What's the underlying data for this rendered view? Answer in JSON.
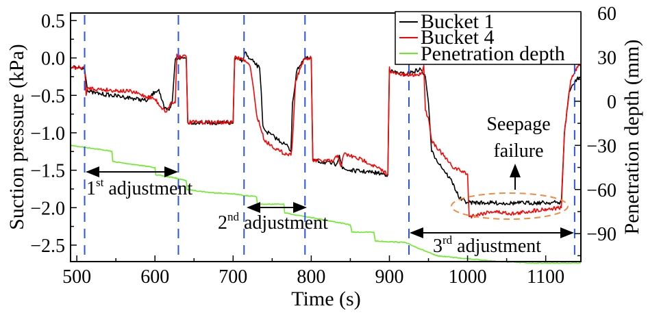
{
  "chart_data": {
    "type": "line",
    "title": "",
    "xlabel": "Time (s)",
    "ylabel": "Suction pressure (kPa)",
    "y2label": "Penetration depth (mm)",
    "xlim": [
      492,
      1145
    ],
    "ylim": [
      -2.72,
      0.6
    ],
    "y2lim": [
      -109,
      60
    ],
    "xticks": [
      500,
      600,
      700,
      800,
      900,
      1000,
      1100
    ],
    "xtick_labels": [
      "500",
      "600",
      "700",
      "800",
      "900",
      "1000",
      "1100"
    ],
    "yticks": [
      0.5,
      0.0,
      -0.5,
      -1.0,
      -1.5,
      -2.0,
      -2.5
    ],
    "ytick_labels": [
      "0.5",
      "0.0",
      "−0.5",
      "−1.0",
      "−1.5",
      "−2.0",
      "−2.5"
    ],
    "y2ticks": [
      60,
      30,
      0,
      -30,
      -60,
      -90
    ],
    "y2tick_labels": [
      "60",
      "30",
      "0",
      "−30",
      "−60",
      "−90"
    ],
    "grid": false,
    "legend": {
      "placement": "top-right",
      "entries": [
        {
          "label": "Bucket 1",
          "color": "#000000"
        },
        {
          "label": "Bucket 4",
          "color": "#ff0000"
        },
        {
          "label": "Penetration depth",
          "color": "#66ee22"
        }
      ]
    },
    "series": [
      {
        "name": "Bucket 1",
        "axis": "left",
        "color": "#000000",
        "x": [
          492,
          510,
          512,
          514,
          530,
          560,
          590,
          600,
          605,
          612,
          618,
          622,
          626,
          630,
          640,
          642,
          700,
          702,
          712,
          716,
          720,
          726,
          734,
          736,
          738,
          742,
          770,
          774,
          776,
          782,
          790,
          798,
          800,
          802,
          832,
          836,
          840,
          848,
          880,
          898,
          900,
          902,
          920,
          940,
          946,
          950,
          954,
          960,
          980,
          990,
          1000,
          1050,
          1120,
          1124,
          1130,
          1140,
          1145
        ],
        "y": [
          -0.13,
          -0.13,
          -0.3,
          -0.45,
          -0.48,
          -0.52,
          -0.57,
          -0.45,
          -0.42,
          -0.68,
          -0.7,
          -0.6,
          -0.02,
          0.0,
          0.0,
          -0.86,
          -0.87,
          -0.01,
          -0.03,
          0.08,
          -0.01,
          -0.05,
          -0.14,
          -0.45,
          -0.9,
          -0.98,
          -1.18,
          -1.25,
          -0.6,
          -0.15,
          -0.02,
          -0.0,
          -0.01,
          -1.37,
          -1.42,
          -1.3,
          -1.48,
          -1.5,
          -1.53,
          -1.56,
          -0.15,
          -0.18,
          -0.22,
          -0.15,
          -0.25,
          -0.6,
          -1.25,
          -1.35,
          -1.65,
          -1.88,
          -1.93,
          -1.94,
          -1.93,
          -1.0,
          -0.45,
          -0.28,
          -0.25
        ]
      },
      {
        "name": "Bucket 4",
        "axis": "left",
        "color": "#ff0000",
        "x": [
          492,
          510,
          512,
          514,
          530,
          570,
          600,
          610,
          615,
          620,
          626,
          628,
          630,
          640,
          642,
          700,
          702,
          712,
          716,
          722,
          726,
          730,
          740,
          760,
          774,
          776,
          780,
          790,
          800,
          802,
          828,
          834,
          838,
          842,
          870,
          898,
          900,
          902,
          920,
          940,
          944,
          946,
          950,
          954,
          980,
          1000,
          1002,
          1030,
          1060,
          1090,
          1120,
          1124,
          1132,
          1140,
          1145
        ],
        "y": [
          -0.13,
          -0.13,
          -0.5,
          -0.4,
          -0.42,
          -0.45,
          -0.55,
          -0.68,
          -0.72,
          -0.6,
          -0.6,
          0.05,
          0.02,
          0.02,
          -0.86,
          -0.86,
          0.0,
          -0.01,
          -0.05,
          -0.12,
          -0.4,
          -0.75,
          -1.1,
          -1.25,
          -1.3,
          -1.1,
          -0.3,
          -0.03,
          0.0,
          -1.37,
          -1.38,
          -1.3,
          -1.45,
          -1.28,
          -1.38,
          -1.55,
          -0.12,
          -0.2,
          -0.23,
          -0.22,
          -0.1,
          -0.7,
          -0.8,
          -1.1,
          -1.45,
          -1.55,
          -2.12,
          -2.05,
          -2.08,
          -2.03,
          -2.0,
          -1.0,
          -0.3,
          -0.12,
          -0.08
        ]
      },
      {
        "name": "Penetration depth",
        "axis": "right",
        "color": "#66ee22",
        "x": [
          492,
          520,
          545,
          546,
          600,
          601,
          625,
          640,
          641,
          670,
          700,
          730,
          731,
          765,
          766,
          800,
          850,
          852,
          880,
          882,
          920,
          960,
          1000,
          1040,
          1080,
          1145
        ],
        "y": [
          -30,
          -32,
          -34,
          -41,
          -45,
          -50,
          -52,
          -54,
          -60,
          -62,
          -63,
          -65,
          -70,
          -70,
          -76,
          -79,
          -84,
          -89,
          -89,
          -95,
          -96,
          -105,
          -107,
          -109,
          -110,
          -110
        ]
      }
    ],
    "annotations": [
      {
        "text": "1",
        "sup": "st",
        "suffix": " adjustment",
        "span": [
          510,
          630
        ]
      },
      {
        "text": "2",
        "sup": "nd",
        "suffix": " adjustment",
        "span": [
          714,
          792
        ]
      },
      {
        "text": "3",
        "sup": "rd",
        "suffix": " adjustment",
        "span": [
          925,
          1137
        ]
      },
      {
        "text": "Seepage",
        "text2": "failure",
        "target": "dashed ellipse around Bucket 1/4 plateau, 980-1120 s"
      }
    ],
    "vlines": [
      510,
      630,
      714,
      792,
      925,
      1137
    ],
    "vline_color": "#2a55dd",
    "ellipse_color": "#f08a3c"
  }
}
